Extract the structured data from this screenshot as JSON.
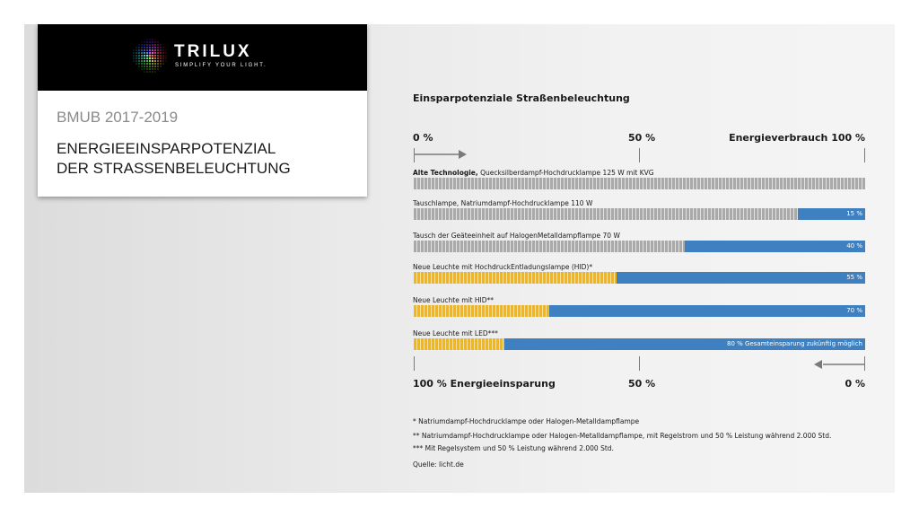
{
  "brand": {
    "name": "TRILUX",
    "tagline": "SIMPLIFY YOUR LIGHT."
  },
  "card": {
    "subtitle": "BMUB 2017-2019",
    "title_line1": "ENERGIEEINSPARPOTENZIAL",
    "title_line2": "DER STRASSENBELEUCHTUNG"
  },
  "chart_data": {
    "type": "bar",
    "orientation": "horizontal",
    "title": "Einsparpotenziale Straßenbeleuchtung",
    "top_axis": {
      "left": "0 %",
      "mid": "50 %",
      "right": "Energieverbrauch 100 %"
    },
    "bottom_axis": {
      "left": "100 % Energieeinsparung",
      "mid": "50 %",
      "right": "0 %"
    },
    "unit": "%",
    "bars": [
      {
        "label_bold": "Alte Technologie,",
        "label": " Quecksilberdampf-Hochdrucklampe 125 W mit KVG",
        "savings": 0,
        "value_label": "",
        "consumption_color": "gray"
      },
      {
        "label_bold": "",
        "label": "Tauschlampe, Natriumdampf-Hochdrucklampe 110 W",
        "savings": 15,
        "value_label": "15 %",
        "consumption_color": "gray"
      },
      {
        "label_bold": "",
        "label": "Tausch der Geäteeinheit auf HalogenMetalldampflampe 70 W",
        "savings": 40,
        "value_label": "40 %",
        "consumption_color": "gray"
      },
      {
        "label_bold": "",
        "label": "Neue Leuchte mit HochdruckEntladungslampe (HID)*",
        "savings": 55,
        "value_label": "55 %",
        "consumption_color": "yellow"
      },
      {
        "label_bold": "",
        "label": "Neue Leuchte mit HID**",
        "savings": 70,
        "value_label": "70 %",
        "consumption_color": "yellow"
      },
      {
        "label_bold": "",
        "label": "Neue Leuchte mit LED***",
        "savings": 80,
        "value_label": "80 % Gesamteinsparung zukünftig möglich",
        "consumption_color": "yellow"
      }
    ],
    "colors": {
      "gray": "#a9a9a9",
      "yellow": "#f2b617",
      "blue": "#3e80c0"
    }
  },
  "footnotes": [
    "*     Natriumdampf-Hochdrucklampe oder Halogen-Metalldampflampe",
    "**   Natriumdampf-Hochdrucklampe oder Halogen-Metalldampflampe, mit Regelstrom und 50 % Leistung während 2.000 Std.",
    "*** Mit Regelsystem und 50 % Leistung während 2.000 Std."
  ],
  "source": "Quelle: licht.de"
}
